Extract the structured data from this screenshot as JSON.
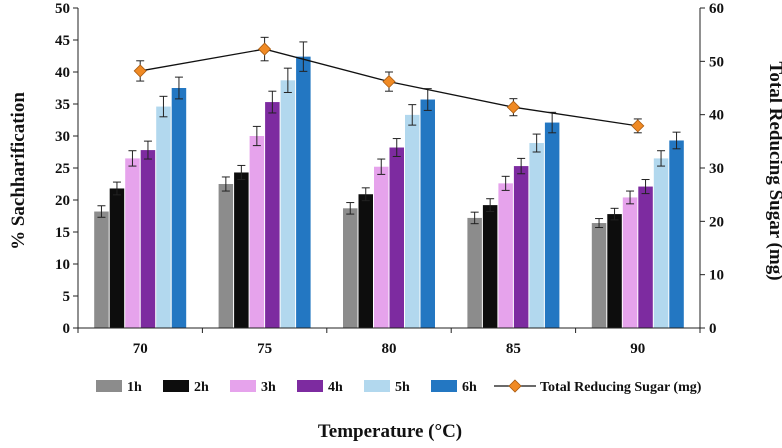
{
  "chart_data": {
    "type": "bar",
    "title": "",
    "xlabel": "Temperature (°C)",
    "ylabel": "% Sachharification",
    "y2label": "Total Reducing Sugar (mg)",
    "categories": [
      "70",
      "75",
      "80",
      "85",
      "90"
    ],
    "ylim": [
      0,
      50
    ],
    "y2lim": [
      0,
      60
    ],
    "yticks": [
      0,
      5,
      10,
      15,
      20,
      25,
      30,
      35,
      40,
      45,
      50
    ],
    "y2ticks": [
      0,
      10,
      20,
      30,
      40,
      50,
      60
    ],
    "series": [
      {
        "name": "1h",
        "color": "#8c8c8c",
        "values": [
          18.2,
          22.5,
          18.7,
          17.2,
          16.4
        ],
        "errors": [
          0.9,
          1.1,
          0.9,
          0.9,
          0.7
        ]
      },
      {
        "name": "2h",
        "color": "#0d0d0d",
        "values": [
          21.8,
          24.3,
          20.9,
          19.2,
          17.8
        ],
        "errors": [
          1.0,
          1.1,
          1.0,
          1.0,
          0.9
        ]
      },
      {
        "name": "3h",
        "color": "#e6a3ec",
        "values": [
          26.5,
          30.0,
          25.2,
          22.6,
          20.4
        ],
        "errors": [
          1.2,
          1.5,
          1.2,
          1.1,
          1.0
        ]
      },
      {
        "name": "4h",
        "color": "#7d2ba0",
        "values": [
          27.8,
          35.3,
          28.2,
          25.3,
          22.1
        ],
        "errors": [
          1.4,
          1.7,
          1.4,
          1.2,
          1.1
        ]
      },
      {
        "name": "5h",
        "color": "#b2d8ee",
        "values": [
          34.6,
          38.7,
          33.3,
          28.9,
          26.5
        ],
        "errors": [
          1.6,
          1.9,
          1.6,
          1.4,
          1.2
        ]
      },
      {
        "name": "6h",
        "color": "#2377c2",
        "values": [
          37.5,
          42.4,
          35.7,
          32.1,
          29.3
        ],
        "errors": [
          1.7,
          2.3,
          1.7,
          1.6,
          1.3
        ]
      }
    ],
    "line_series": {
      "name": "Total Reducing Sugar (mg)",
      "axis": "right",
      "line_color": "#111111",
      "marker_color": "#f08a24",
      "values": [
        48.2,
        52.3,
        46.2,
        41.4,
        37.9
      ],
      "errors": [
        1.9,
        2.2,
        1.8,
        1.6,
        1.3
      ]
    }
  }
}
